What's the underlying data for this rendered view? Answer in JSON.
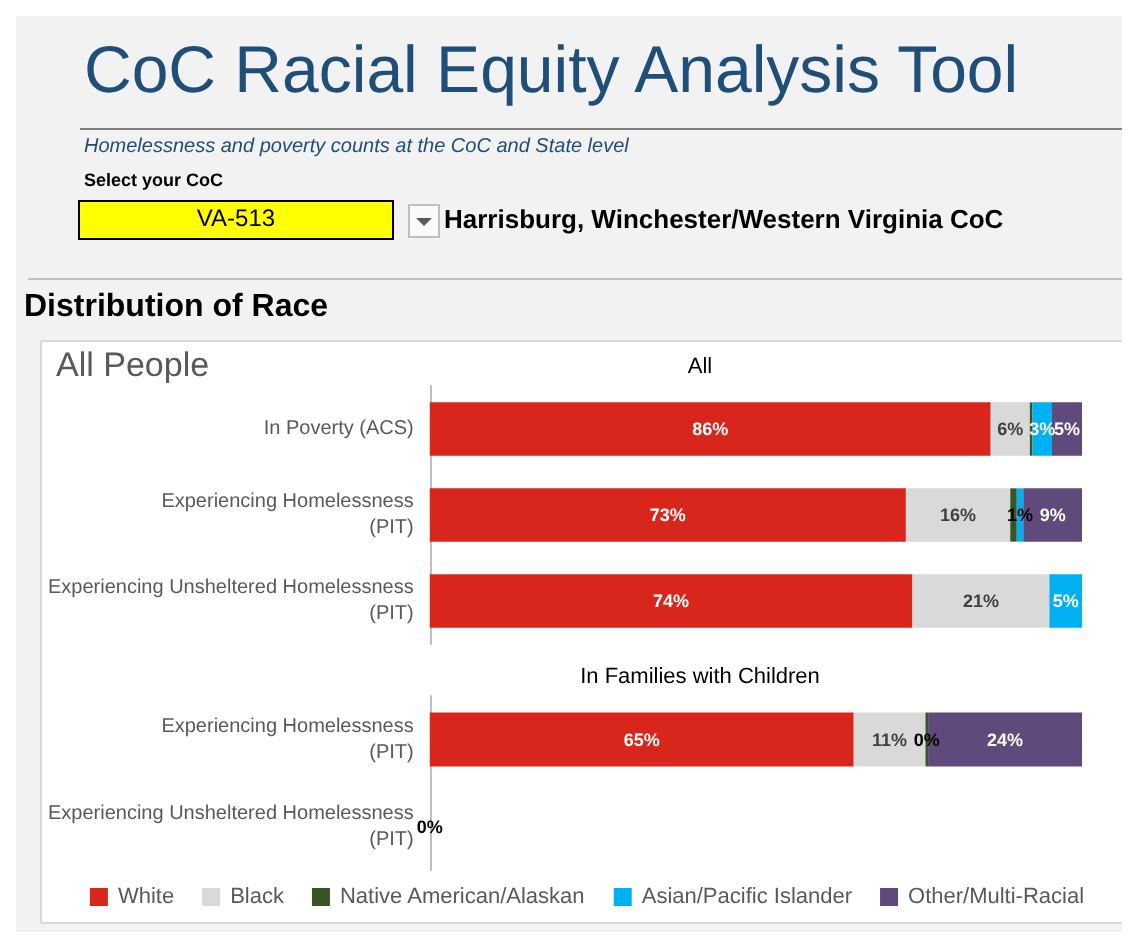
{
  "chart_data": [
    {
      "type": "bar",
      "orientation": "horizontal",
      "stacked": true,
      "title": "All",
      "annotations": [
        "CoC Racial Equity Analysis Tool",
        "Homelessness and poverty counts at the CoC and State level",
        "Select your CoC",
        "VA-513",
        "Harrisburg, Winchester/Western Virginia CoC",
        "Distribution of Race",
        "All People"
      ],
      "categories": [
        "In Poverty (ACS)",
        "Experiencing Homelessness (PIT)",
        "Experiencing Unsheltered Homelessness (PIT)"
      ],
      "xlim": [
        0,
        100
      ],
      "tick_labels": "y",
      "grid": false,
      "legend": false,
      "series": [
        {
          "color": "#d9261c",
          "values": [
            86,
            73,
            74
          ],
          "value_labels": [
            "86%",
            "73%",
            "74%"
          ]
        },
        {
          "color": "#d9d9d9",
          "values": [
            6,
            16,
            21
          ],
          "value_labels": [
            "6%",
            "16%",
            "21%"
          ]
        },
        {
          "color": "#375623",
          "values": [
            0.4,
            1,
            0
          ],
          "value_labels": [
            null,
            null,
            null
          ]
        },
        {
          "color": "#00b0f0",
          "values": [
            3,
            1,
            5
          ],
          "value_labels": [
            "3%",
            "1%",
            "5%"
          ]
        },
        {
          "color": "#604a7b",
          "values": [
            5,
            9,
            0
          ],
          "value_labels": [
            "5%",
            "9%",
            null
          ]
        }
      ]
    },
    {
      "type": "bar",
      "orientation": "horizontal",
      "stacked": true,
      "title": "In Families with Children",
      "categories": [
        "Experiencing Homelessness (PIT)",
        "Experiencing Unsheltered Homelessness (PIT)"
      ],
      "xlim": [
        0,
        100
      ],
      "tick_labels": "y",
      "grid": false,
      "legend": "bottom",
      "series": [
        {
          "name": "White",
          "color": "#d9261c",
          "values": [
            65,
            0
          ],
          "value_labels": [
            "65%",
            "0%"
          ]
        },
        {
          "name": "Black",
          "color": "#d9d9d9",
          "values": [
            11,
            0
          ],
          "value_labels": [
            "11%",
            null
          ]
        },
        {
          "name": "Native American/Alaskan",
          "color": "#375623",
          "values": [
            0.4,
            0
          ],
          "value_labels": [
            "0%",
            null
          ]
        },
        {
          "name": "Asian/Pacific Islander",
          "color": "#00b0f0",
          "values": [
            0,
            0
          ],
          "value_labels": [
            null,
            null
          ]
        },
        {
          "name": "Other/Multi-Racial",
          "color": "#604a7b",
          "values": [
            24,
            0
          ],
          "value_labels": [
            "24%",
            null
          ]
        }
      ]
    }
  ]
}
